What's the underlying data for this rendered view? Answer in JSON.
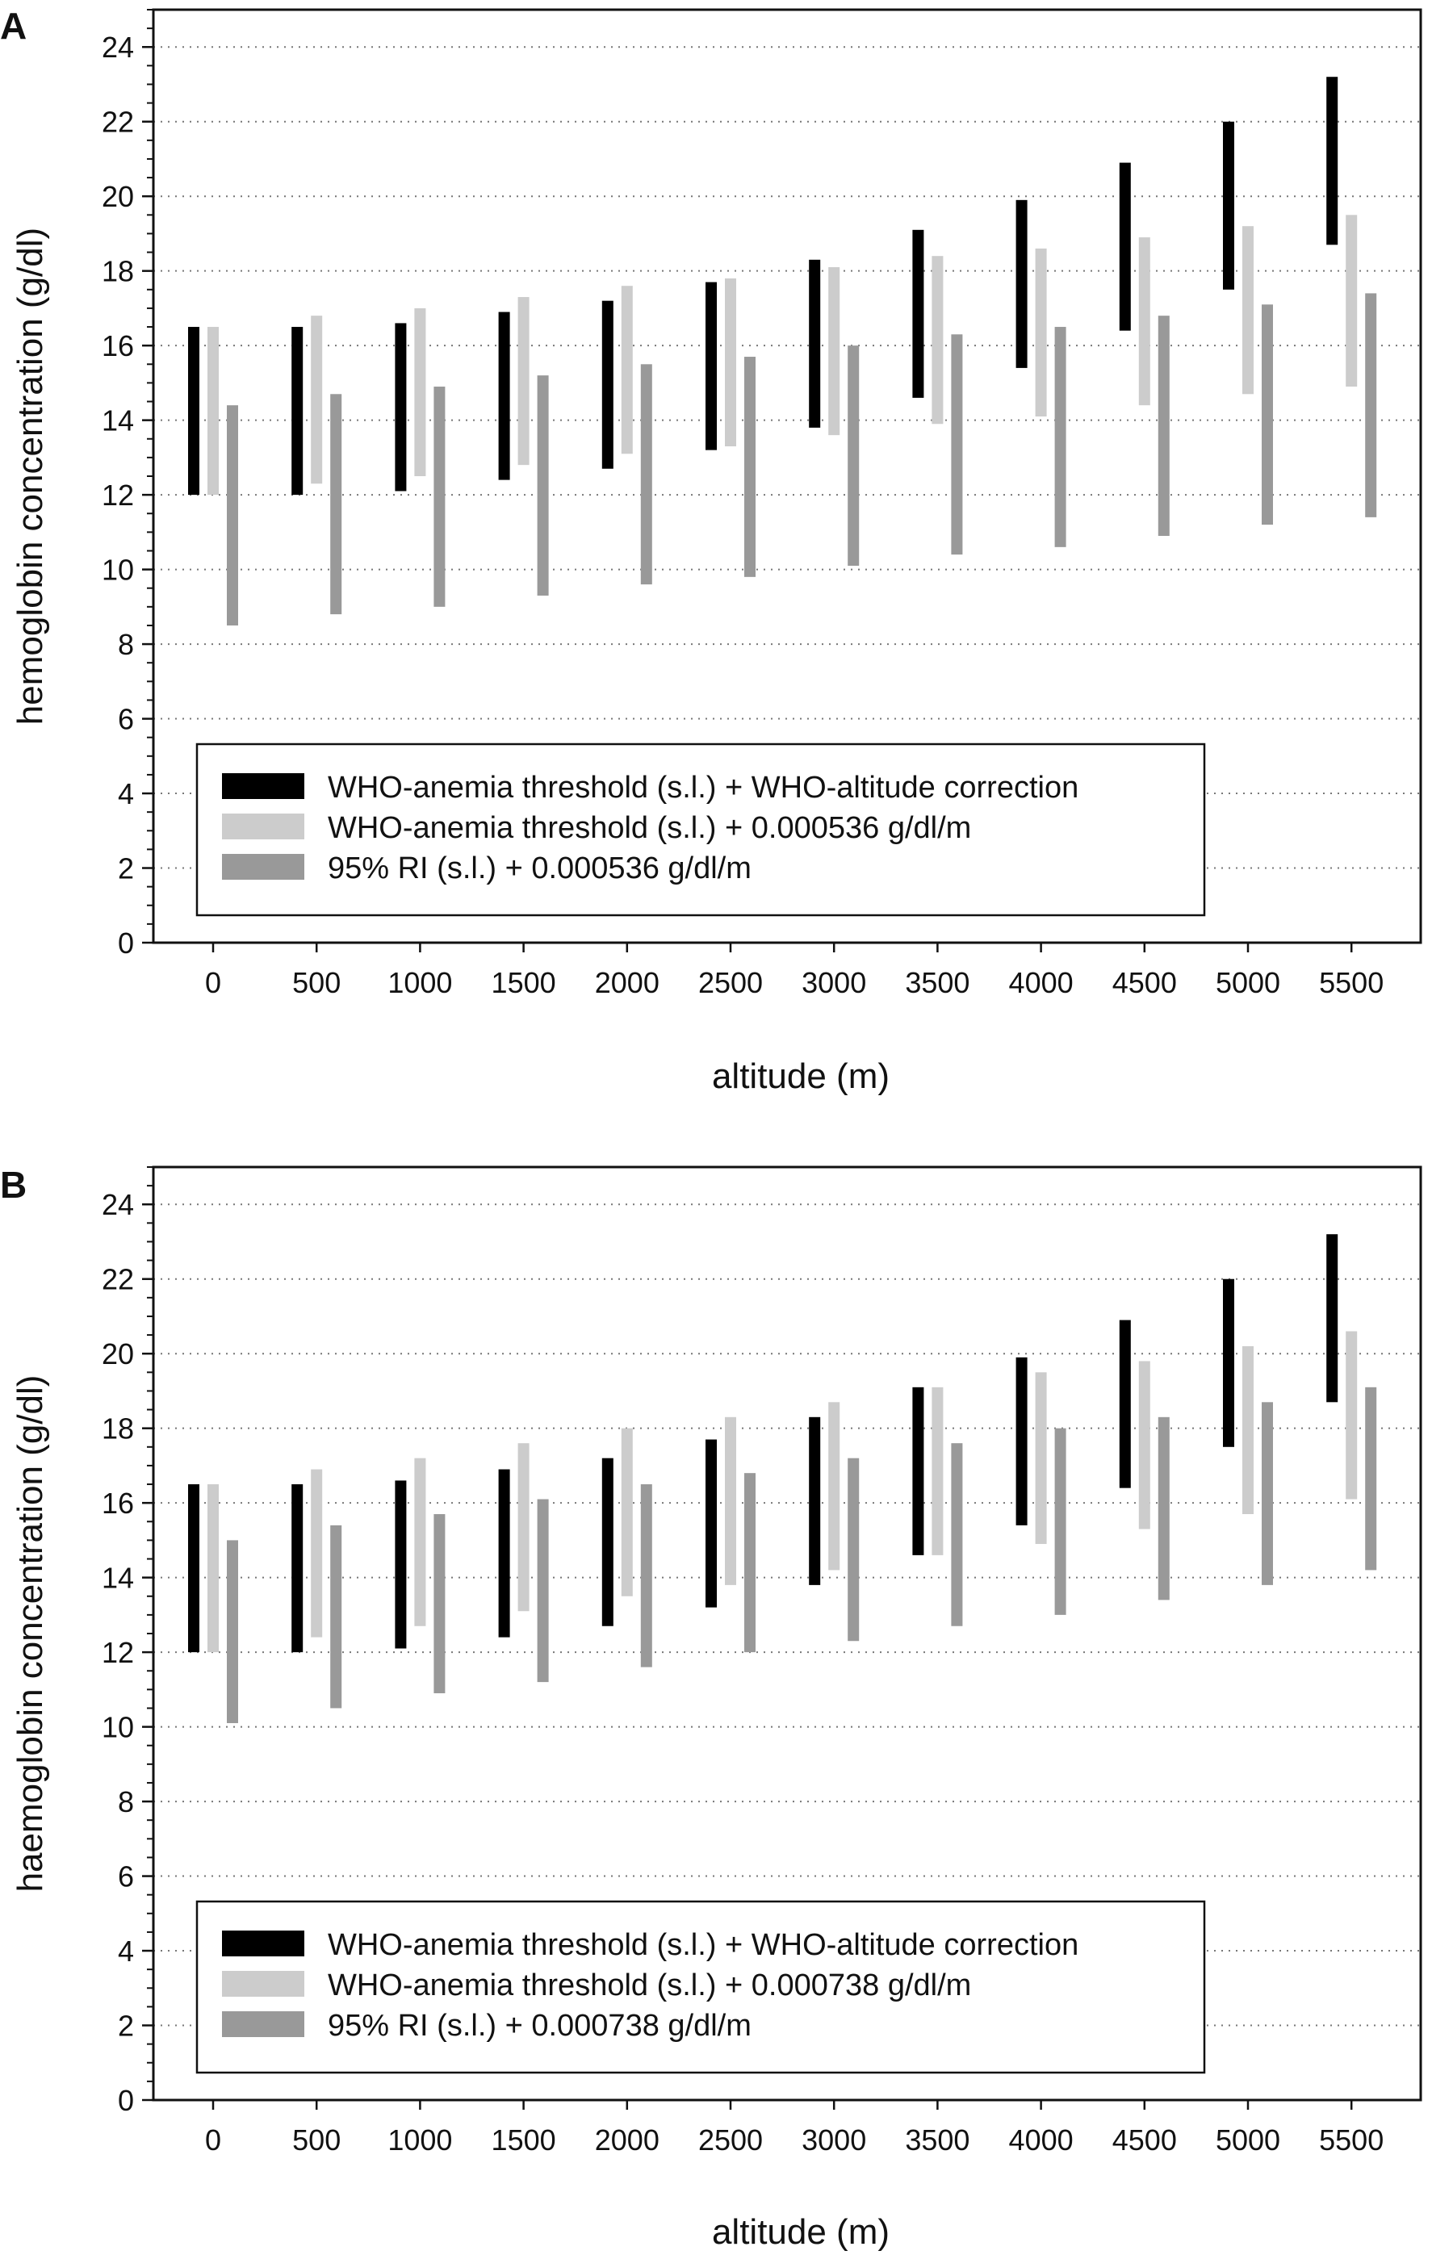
{
  "chart_data": [
    {
      "type": "bar",
      "subtype": "floating-range",
      "panel_label": "A",
      "xlabel": "altitude (m)",
      "ylabel": "hemoglobin concentration (g/dl)",
      "ylim": [
        0,
        25
      ],
      "yticks": [
        0,
        2,
        4,
        6,
        8,
        10,
        12,
        14,
        16,
        18,
        20,
        22,
        24
      ],
      "grid": "horizontal dotted",
      "legend_position": "lower-left",
      "categories": [
        "0",
        "500",
        "1000",
        "1500",
        "2000",
        "2500",
        "3000",
        "3500",
        "4000",
        "4500",
        "5000",
        "5500"
      ],
      "series": [
        {
          "name": "WHO-anemia threshold (s.l.) + WHO-altitude correction",
          "color": "#000000",
          "low": [
            12.0,
            12.0,
            12.1,
            12.4,
            12.7,
            13.2,
            13.8,
            14.6,
            15.4,
            16.4,
            17.5,
            18.7
          ],
          "high": [
            16.5,
            16.5,
            16.6,
            16.9,
            17.2,
            17.7,
            18.3,
            19.1,
            19.9,
            20.9,
            22.0,
            23.2
          ]
        },
        {
          "name": "WHO-anemia threshold (s.l.) + 0.000536 g/dl/m",
          "color": "#cccccc",
          "low": [
            12.0,
            12.3,
            12.5,
            12.8,
            13.1,
            13.3,
            13.6,
            13.9,
            14.1,
            14.4,
            14.7,
            14.9
          ],
          "high": [
            16.5,
            16.8,
            17.0,
            17.3,
            17.6,
            17.8,
            18.1,
            18.4,
            18.6,
            18.9,
            19.2,
            19.5
          ]
        },
        {
          "name": "95% RI (s.l.) + 0.000536 g/dl/m",
          "color": "#999999",
          "low": [
            8.5,
            8.8,
            9.0,
            9.3,
            9.6,
            9.8,
            10.1,
            10.4,
            10.6,
            10.9,
            11.2,
            11.4
          ],
          "high": [
            14.4,
            14.7,
            14.9,
            15.2,
            15.5,
            15.7,
            16.0,
            16.3,
            16.5,
            16.8,
            17.1,
            17.4
          ]
        }
      ]
    },
    {
      "type": "bar",
      "subtype": "floating-range",
      "panel_label": "B",
      "xlabel": "altitude (m)",
      "ylabel": "haemoglobin concentration (g/dl)",
      "ylim": [
        0,
        25
      ],
      "yticks": [
        0,
        2,
        4,
        6,
        8,
        10,
        12,
        14,
        16,
        18,
        20,
        22,
        24
      ],
      "grid": "horizontal dotted",
      "legend_position": "lower-left",
      "categories": [
        "0",
        "500",
        "1000",
        "1500",
        "2000",
        "2500",
        "3000",
        "3500",
        "4000",
        "4500",
        "5000",
        "5500"
      ],
      "series": [
        {
          "name": "WHO-anemia threshold (s.l.) + WHO-altitude correction",
          "color": "#000000",
          "low": [
            12.0,
            12.0,
            12.1,
            12.4,
            12.7,
            13.2,
            13.8,
            14.6,
            15.4,
            16.4,
            17.5,
            18.7
          ],
          "high": [
            16.5,
            16.5,
            16.6,
            16.9,
            17.2,
            17.7,
            18.3,
            19.1,
            19.9,
            20.9,
            22.0,
            23.2
          ]
        },
        {
          "name": "WHO-anemia threshold (s.l.) + 0.000738 g/dl/m",
          "color": "#cccccc",
          "low": [
            12.0,
            12.4,
            12.7,
            13.1,
            13.5,
            13.8,
            14.2,
            14.6,
            14.9,
            15.3,
            15.7,
            16.1
          ],
          "high": [
            16.5,
            16.9,
            17.2,
            17.6,
            18.0,
            18.3,
            18.7,
            19.1,
            19.5,
            19.8,
            20.2,
            20.6
          ]
        },
        {
          "name": "95% RI (s.l.) + 0.000738 g/dl/m",
          "color": "#999999",
          "low": [
            10.1,
            10.5,
            10.9,
            11.2,
            11.6,
            12.0,
            12.3,
            12.7,
            13.0,
            13.4,
            13.8,
            14.2
          ],
          "high": [
            15.0,
            15.4,
            15.7,
            16.1,
            16.5,
            16.8,
            17.2,
            17.6,
            18.0,
            18.3,
            18.7,
            19.1
          ]
        }
      ]
    }
  ]
}
